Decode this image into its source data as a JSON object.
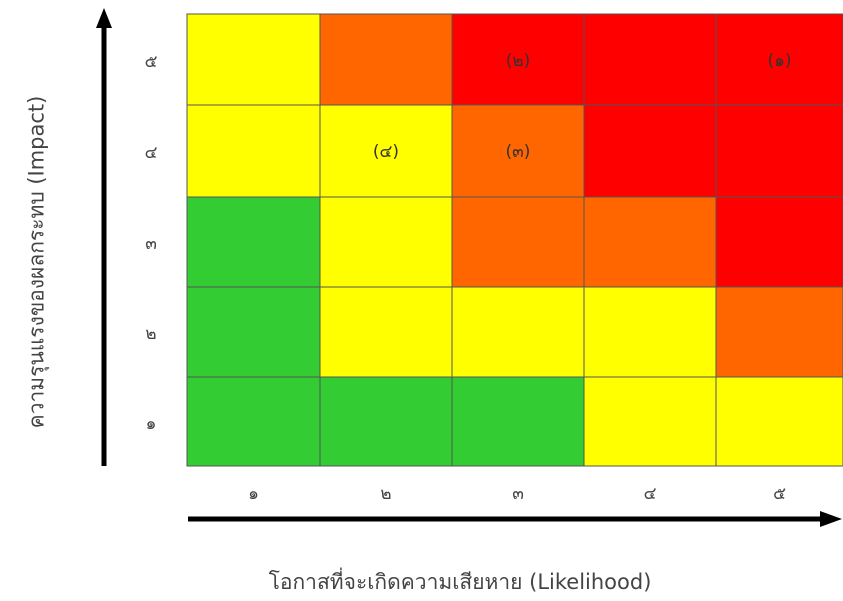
{
  "chart_data": {
    "type": "heatmap",
    "xlabel": "โอกาสที่จะเกิดความเสียหาย (Likelihood)",
    "ylabel": "ความรุนแรงของผลกระทบ (Impact)",
    "x_tick_labels": [
      "๑",
      "๒",
      "๓",
      "๔",
      "๕"
    ],
    "y_tick_labels": [
      "๕",
      "๔",
      "๓",
      "๒",
      "๑"
    ],
    "grid": [
      [
        "yellow",
        "orange",
        "red",
        "red",
        "red"
      ],
      [
        "yellow",
        "yellow",
        "orange",
        "red",
        "red"
      ],
      [
        "green",
        "yellow",
        "orange",
        "orange",
        "red"
      ],
      [
        "green",
        "yellow",
        "yellow",
        "yellow",
        "orange"
      ],
      [
        "green",
        "green",
        "green",
        "yellow",
        "yellow"
      ]
    ],
    "cell_labels": [
      {
        "row": 0,
        "col": 2,
        "text": "(๒)"
      },
      {
        "row": 0,
        "col": 4,
        "text": "(๑)"
      },
      {
        "row": 1,
        "col": 1,
        "text": "(๔)"
      },
      {
        "row": 1,
        "col": 2,
        "text": "(๓)"
      }
    ],
    "colors": {
      "green": "#33cc33",
      "yellow": "#ffff00",
      "orange": "#ff6600",
      "red": "#ff0000"
    }
  }
}
